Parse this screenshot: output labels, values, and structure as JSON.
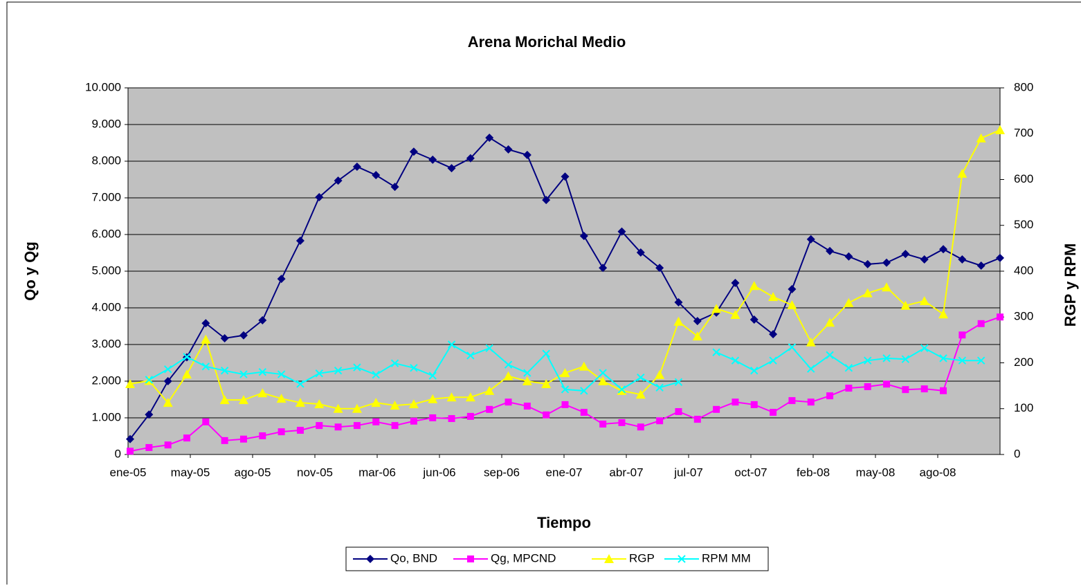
{
  "chart_data": {
    "type": "line",
    "title": "Arena Morichal Medio",
    "x_label": "Tiempo",
    "y_label": "Qo y Qg",
    "y2_label": "RGP y RPM",
    "xtick_labels": [
      "ene-05",
      "may-05",
      "ago-05",
      "nov-05",
      "mar-06",
      "jun-06",
      "sep-06",
      "ene-07",
      "abr-07",
      "jul-07",
      "oct-07",
      "feb-08",
      "may-08",
      "ago-08"
    ],
    "ylim": [
      0,
      10000
    ],
    "yticks": [
      0,
      {
        "value": 1000,
        "label": "1.000"
      },
      {
        "value": 2000,
        "label": "2.000"
      },
      {
        "value": 3000,
        "label": "3.000"
      },
      {
        "value": 4000,
        "label": "4.000"
      },
      {
        "value": 5000,
        "label": "5.000"
      },
      {
        "value": 6000,
        "label": "6.000"
      },
      {
        "value": 7000,
        "label": "7.000"
      },
      {
        "value": 8000,
        "label": "8.000"
      },
      {
        "value": 9000,
        "label": "9.000"
      },
      {
        "value": 10000,
        "label": "10.000"
      }
    ],
    "y2lim": [
      0,
      800
    ],
    "y2ticks": [
      0,
      100,
      200,
      300,
      400,
      500,
      600,
      700,
      800
    ],
    "grid": true,
    "series": [
      {
        "name": "Qo, BND",
        "color": "#000080",
        "marker": "diamond",
        "values": [
          420,
          1090,
          2000,
          2650,
          3580,
          3170,
          3250,
          3660,
          4790,
          5830,
          7020,
          7470,
          7850,
          7620,
          7300,
          8260,
          8040,
          7810,
          8080,
          8640,
          8320,
          8170,
          6940,
          7580,
          5960,
          5090,
          6080,
          5510,
          5090,
          4150,
          3640,
          3870,
          4680,
          3680,
          3280,
          4510,
          5870,
          5550,
          5400,
          5190,
          5230,
          5470,
          5320,
          5600,
          5320,
          5150,
          5360
        ]
      },
      {
        "name": "Qg, MPCND",
        "color": "#ff00ff",
        "marker": "square",
        "values": [
          90,
          190,
          260,
          450,
          890,
          380,
          420,
          510,
          620,
          660,
          790,
          750,
          790,
          890,
          790,
          910,
          1000,
          980,
          1040,
          1230,
          1430,
          1320,
          1080,
          1360,
          1150,
          830,
          870,
          750,
          920,
          1170,
          960,
          1230,
          1430,
          1360,
          1150,
          1470,
          1430,
          1600,
          1810,
          1850,
          1920,
          1770,
          1790,
          1740,
          3260,
          3570,
          3750
        ]
      },
      {
        "name": "RGP",
        "color": "#ffff00",
        "marker": "triangle",
        "axis": "y2",
        "values": [
          154,
          161,
          113,
          175,
          251,
          119,
          119,
          134,
          122,
          113,
          110,
          100,
          100,
          113,
          107,
          110,
          121,
          125,
          125,
          139,
          171,
          160,
          154,
          178,
          192,
          160,
          139,
          131,
          174,
          290,
          258,
          318,
          305,
          368,
          344,
          326,
          245,
          288,
          331,
          352,
          365,
          325,
          335,
          306,
          613,
          690,
          708
        ]
      },
      {
        "name": "RPM MM",
        "color": "#00ffff",
        "marker": "x",
        "axis": "y2",
        "values": [
          null,
          163,
          186,
          213,
          192,
          183,
          175,
          180,
          175,
          154,
          177,
          183,
          190,
          174,
          199,
          189,
          172,
          240,
          216,
          232,
          196,
          178,
          220,
          142,
          139,
          178,
          142,
          168,
          146,
          158,
          null,
          223,
          205,
          183,
          205,
          234,
          187,
          217,
          189,
          205,
          210,
          208,
          232,
          210,
          205,
          205,
          null
        ]
      }
    ]
  }
}
